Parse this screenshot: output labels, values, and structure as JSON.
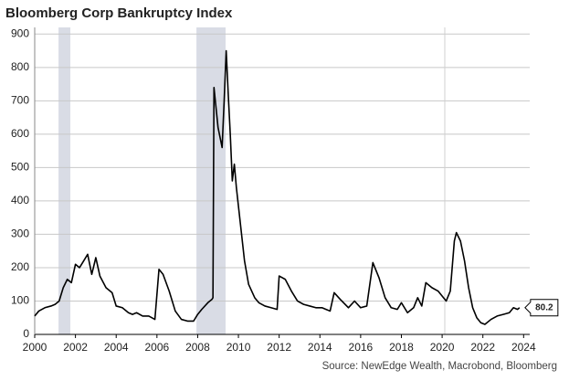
{
  "chart_data": {
    "type": "line",
    "title": "Bloomberg Corp Bankruptcy Index",
    "source": "Source: NewEdge Wealth, Macrobond, Bloomberg",
    "xlim": [
      2000,
      2024.3
    ],
    "ylim": [
      0,
      920
    ],
    "xticks": [
      2000,
      2002,
      2004,
      2006,
      2008,
      2010,
      2012,
      2014,
      2016,
      2018,
      2020,
      2022,
      2024
    ],
    "yticks": [
      0,
      100,
      200,
      300,
      400,
      500,
      600,
      700,
      800,
      900
    ],
    "grid": true,
    "shaded_ranges": [
      [
        2001.17,
        2001.75
      ],
      [
        2007.94,
        2009.37
      ]
    ],
    "vlines": [
      2020.13
    ],
    "last_value_label": "80.2",
    "x": [
      2000.0,
      2000.2,
      2000.5,
      2000.8,
      2001.0,
      2001.2,
      2001.4,
      2001.6,
      2001.8,
      2002.0,
      2002.2,
      2002.4,
      2002.6,
      2002.8,
      2003.0,
      2003.2,
      2003.5,
      2003.8,
      2004.0,
      2004.3,
      2004.6,
      2004.8,
      2005.0,
      2005.3,
      2005.6,
      2005.9,
      2006.1,
      2006.3,
      2006.6,
      2006.9,
      2007.2,
      2007.5,
      2007.8,
      2008.0,
      2008.2,
      2008.5,
      2008.7,
      2008.75,
      2008.8,
      2008.9,
      2009.0,
      2009.1,
      2009.2,
      2009.3,
      2009.4,
      2009.5,
      2009.6,
      2009.7,
      2009.8,
      2009.9,
      2010.1,
      2010.3,
      2010.5,
      2010.8,
      2011.0,
      2011.3,
      2011.6,
      2011.9,
      2012.0,
      2012.3,
      2012.6,
      2012.9,
      2013.2,
      2013.5,
      2013.8,
      2014.1,
      2014.3,
      2014.5,
      2014.7,
      2015.0,
      2015.4,
      2015.7,
      2016.0,
      2016.3,
      2016.6,
      2016.9,
      2017.2,
      2017.5,
      2017.8,
      2018.0,
      2018.3,
      2018.6,
      2018.8,
      2019.0,
      2019.2,
      2019.5,
      2019.8,
      2020.0,
      2020.2,
      2020.4,
      2020.6,
      2020.7,
      2020.9,
      2021.1,
      2021.3,
      2021.5,
      2021.7,
      2021.9,
      2022.1,
      2022.4,
      2022.7,
      2023.0,
      2023.3,
      2023.5,
      2023.7,
      2023.8
    ],
    "series": [
      {
        "color": "#000000",
        "values": [
          55,
          70,
          80,
          85,
          90,
          100,
          140,
          165,
          155,
          210,
          200,
          220,
          240,
          180,
          230,
          175,
          140,
          125,
          85,
          80,
          65,
          60,
          65,
          55,
          55,
          45,
          195,
          180,
          130,
          70,
          45,
          40,
          40,
          60,
          75,
          95,
          105,
          110,
          740,
          680,
          620,
          590,
          560,
          700,
          850,
          720,
          600,
          460,
          510,
          440,
          330,
          220,
          150,
          110,
          95,
          85,
          80,
          75,
          175,
          165,
          130,
          100,
          90,
          85,
          80,
          80,
          75,
          70,
          125,
          105,
          80,
          100,
          80,
          85,
          215,
          170,
          110,
          80,
          75,
          95,
          65,
          80,
          110,
          85,
          155,
          140,
          130,
          115,
          100,
          130,
          280,
          305,
          280,
          220,
          140,
          80,
          50,
          35,
          30,
          45,
          55,
          60,
          65,
          80,
          75,
          80.2
        ]
      }
    ]
  }
}
